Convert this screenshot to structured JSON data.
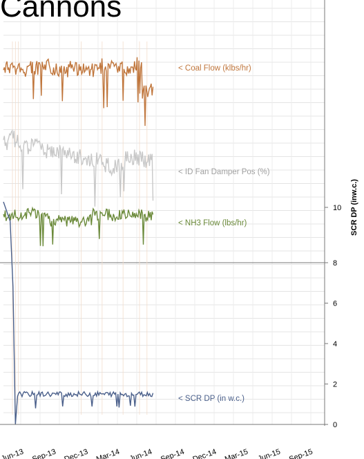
{
  "page_title": "Cannons",
  "chart_data": {
    "type": "line",
    "title": "Cannons",
    "x": {
      "tick_labels": [
        "Jun-13",
        "Sep-13",
        "Dec-13",
        "Mar-14",
        "Jun-14",
        "Sep-14",
        "Dec-14",
        "Mar-15",
        "Jun-15",
        "Sep-15"
      ],
      "range": [
        "2013-05-01",
        "2015-10-31"
      ]
    },
    "y_right": {
      "label": "SCR DP (inw.c.)",
      "lower_ticks": [
        0,
        2,
        4,
        6
      ],
      "lower_range": [
        0,
        8
      ],
      "upper_ticks": [
        8,
        10
      ],
      "upper_range": [
        8,
        12
      ]
    },
    "grid": true,
    "series": [
      {
        "name": "< Coal Flow (klbs/hr)",
        "color": "#c0763c",
        "data_end": "2014-06-30",
        "baseline": 0.85,
        "level": "mid-high"
      },
      {
        "name": "< ID Fan Damper Pos (%)",
        "color": "#c8c8c8",
        "data_end": "2014-06-30",
        "baseline": 0.62,
        "level": "declining"
      },
      {
        "name": "< NH3 Flow (lbs/hr)",
        "color": "#6b8a3a",
        "data_end": "2014-06-30",
        "baseline": 0.5,
        "level": "steady"
      },
      {
        "name": "< SCR DP (in w.c.)",
        "color": "#4a5f8a",
        "data_end": "2014-06-30",
        "values": [
          {
            "x": "2013-05-15",
            "y": 10.6
          },
          {
            "x": "2013-06-01",
            "y": 9.5
          },
          {
            "x": "2013-06-10",
            "y": 1.5
          },
          {
            "x": "2013-07-01",
            "y": 1.5
          },
          {
            "x": "2013-09-01",
            "y": 1.6
          },
          {
            "x": "2013-12-01",
            "y": 1.5
          },
          {
            "x": "2014-03-01",
            "y": 1.6
          },
          {
            "x": "2014-06-30",
            "y": 1.5
          }
        ]
      }
    ]
  }
}
